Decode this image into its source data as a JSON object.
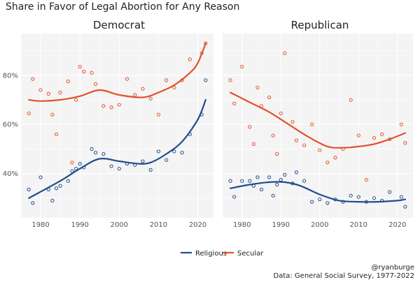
{
  "title": "Share in Favor of Legal Abortion for Any Reason",
  "footer": {
    "handle": "@ryanburge",
    "source": "Data: General Social Survey, 1977-2022"
  },
  "chart_data": {
    "type": "scatter",
    "title": "Share in Favor of Legal Abortion for Any Reason",
    "legend_position": "bottom",
    "grid": true,
    "x_ticks": [
      1980,
      1990,
      2000,
      2010,
      2020
    ],
    "y_ticks": [
      40,
      60,
      80
    ],
    "y_tick_labels": [
      "40%",
      "60%",
      "80%"
    ],
    "xlim": [
      1975,
      2024
    ],
    "ylim": [
      22,
      97
    ],
    "colors": {
      "Religious": "#1f4e8c",
      "Secular": "#e4512b"
    },
    "panels": [
      {
        "title": "Democrat",
        "series": [
          {
            "name": "Religious",
            "points": [
              [
                1977,
                33.5
              ],
              [
                1978,
                28
              ],
              [
                1980,
                38.5
              ],
              [
                1982,
                33.5
              ],
              [
                1983,
                29
              ],
              [
                1984,
                34
              ],
              [
                1985,
                35
              ],
              [
                1987,
                37
              ],
              [
                1988,
                41
              ],
              [
                1989,
                42
              ],
              [
                1990,
                44
              ],
              [
                1991,
                42.5
              ],
              [
                1993,
                50
              ],
              [
                1994,
                48.5
              ],
              [
                1996,
                48
              ],
              [
                1998,
                43
              ],
              [
                2000,
                42
              ],
              [
                2002,
                44
              ],
              [
                2004,
                43.5
              ],
              [
                2006,
                45
              ],
              [
                2008,
                41.5
              ],
              [
                2010,
                49
              ],
              [
                2012,
                45.5
              ],
              [
                2014,
                49
              ],
              [
                2016,
                48.5
              ],
              [
                2018,
                56
              ],
              [
                2021,
                64
              ],
              [
                2022,
                78
              ]
            ],
            "trend": [
              [
                1977,
                30
              ],
              [
                1985,
                37
              ],
              [
                1990,
                42
              ],
              [
                1995,
                46
              ],
              [
                2000,
                45
              ],
              [
                2005,
                44
              ],
              [
                2008,
                44.5
              ],
              [
                2012,
                48
              ],
              [
                2016,
                53
              ],
              [
                2020,
                62
              ],
              [
                2022,
                70
              ]
            ]
          },
          {
            "name": "Secular",
            "points": [
              [
                1977,
                64.5
              ],
              [
                1978,
                78.5
              ],
              [
                1980,
                74
              ],
              [
                1982,
                72.5
              ],
              [
                1983,
                64
              ],
              [
                1984,
                56
              ],
              [
                1985,
                73
              ],
              [
                1987,
                77.5
              ],
              [
                1988,
                44.5
              ],
              [
                1989,
                70
              ],
              [
                1990,
                83.5
              ],
              [
                1991,
                81.5
              ],
              [
                1993,
                81
              ],
              [
                1994,
                76.5
              ],
              [
                1996,
                67.5
              ],
              [
                1998,
                67
              ],
              [
                2000,
                68
              ],
              [
                2002,
                78.5
              ],
              [
                2004,
                72
              ],
              [
                2006,
                74.5
              ],
              [
                2008,
                70.5
              ],
              [
                2010,
                64
              ],
              [
                2012,
                78
              ],
              [
                2014,
                75
              ],
              [
                2016,
                78
              ],
              [
                2018,
                86.5
              ],
              [
                2021,
                89
              ],
              [
                2022,
                93
              ]
            ],
            "trend": [
              [
                1977,
                70
              ],
              [
                1980,
                69.5
              ],
              [
                1985,
                70
              ],
              [
                1990,
                71.5
              ],
              [
                1995,
                74
              ],
              [
                2000,
                72
              ],
              [
                2006,
                71
              ],
              [
                2010,
                73
              ],
              [
                2014,
                76
              ],
              [
                2018,
                81
              ],
              [
                2020,
                85
              ],
              [
                2022,
                93
              ]
            ]
          }
        ]
      },
      {
        "title": "Republican",
        "series": [
          {
            "name": "Religious",
            "points": [
              [
                1977,
                37
              ],
              [
                1978,
                30.5
              ],
              [
                1980,
                37
              ],
              [
                1982,
                37
              ],
              [
                1983,
                35
              ],
              [
                1984,
                38.5
              ],
              [
                1985,
                33.5
              ],
              [
                1987,
                38.5
              ],
              [
                1988,
                31
              ],
              [
                1989,
                35.5
              ],
              [
                1990,
                37.5
              ],
              [
                1991,
                39.5
              ],
              [
                1993,
                36
              ],
              [
                1994,
                40.5
              ],
              [
                1996,
                37
              ],
              [
                1998,
                28.5
              ],
              [
                2000,
                29.5
              ],
              [
                2002,
                28
              ],
              [
                2004,
                29.5
              ],
              [
                2006,
                28.5
              ],
              [
                2008,
                31
              ],
              [
                2010,
                30.5
              ],
              [
                2012,
                28.5
              ],
              [
                2014,
                30
              ],
              [
                2016,
                29
              ],
              [
                2018,
                32.5
              ],
              [
                2021,
                30.5
              ],
              [
                2022,
                26.5
              ]
            ],
            "trend": [
              [
                1977,
                34
              ],
              [
                1982,
                35.5
              ],
              [
                1987,
                36.5
              ],
              [
                1991,
                36.5
              ],
              [
                1995,
                35
              ],
              [
                2000,
                31.5
              ],
              [
                2005,
                29
              ],
              [
                2010,
                28.5
              ],
              [
                2015,
                28.5
              ],
              [
                2020,
                29
              ],
              [
                2022,
                29.5
              ]
            ]
          },
          {
            "name": "Secular",
            "points": [
              [
                1977,
                78
              ],
              [
                1978,
                68.5
              ],
              [
                1980,
                83.5
              ],
              [
                1982,
                59
              ],
              [
                1983,
                52
              ],
              [
                1984,
                75
              ],
              [
                1985,
                67.5
              ],
              [
                1987,
                71
              ],
              [
                1988,
                55.5
              ],
              [
                1989,
                48
              ],
              [
                1990,
                64.5
              ],
              [
                1991,
                89
              ],
              [
                1993,
                61
              ],
              [
                1994,
                53.5
              ],
              [
                1996,
                51.5
              ],
              [
                1998,
                60
              ],
              [
                2000,
                49.5
              ],
              [
                2002,
                44.5
              ],
              [
                2004,
                46.5
              ],
              [
                2006,
                50
              ],
              [
                2008,
                70
              ],
              [
                2010,
                55.5
              ],
              [
                2012,
                37.5
              ],
              [
                2014,
                54.5
              ],
              [
                2016,
                56
              ],
              [
                2018,
                54
              ],
              [
                2021,
                60
              ],
              [
                2022,
                52.5
              ]
            ],
            "trend": [
              [
                1977,
                73
              ],
              [
                1982,
                69
              ],
              [
                1987,
                65
              ],
              [
                1992,
                60
              ],
              [
                1997,
                55
              ],
              [
                2002,
                51
              ],
              [
                2006,
                50.5
              ],
              [
                2010,
                51
              ],
              [
                2014,
                52
              ],
              [
                2018,
                54
              ],
              [
                2022,
                56.5
              ]
            ]
          }
        ]
      }
    ],
    "legend": [
      "Religious",
      "Secular"
    ]
  }
}
